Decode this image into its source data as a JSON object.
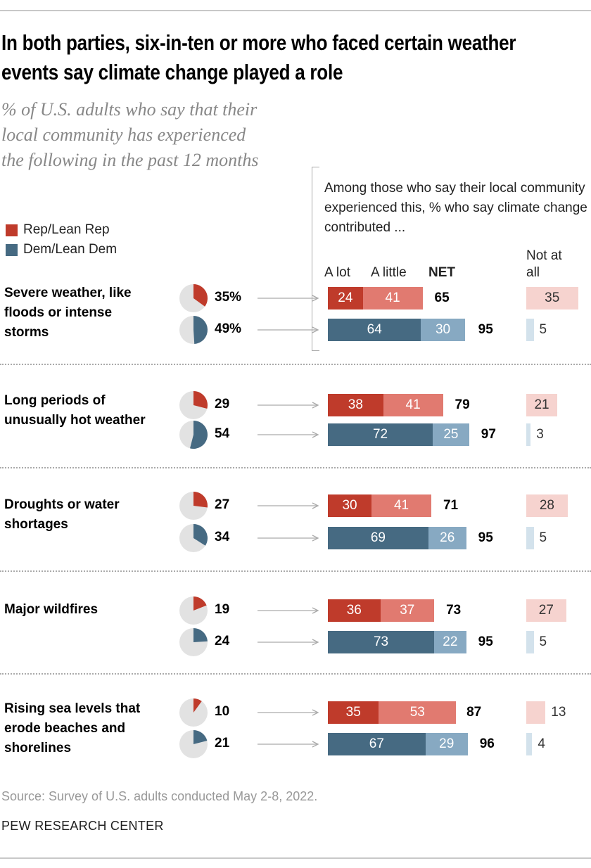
{
  "title": "In both parties, six-in-ten or more who faced certain weather events say climate change played a role",
  "subtitle": "% of U.S. adults who say that their local community has experienced the following in the past 12 months",
  "legend": [
    {
      "name": "Rep/Lean Rep",
      "color": "#BF3B2B"
    },
    {
      "name": "Dem/Lean Dem",
      "color": "#466A82"
    }
  ],
  "bracket_note": "Among those who say their local community experienced this, % who say climate change contributed ...",
  "headers": {
    "a_lot": "A lot",
    "a_little": "A little",
    "net": "NET",
    "not_at_all": "Not at all"
  },
  "colors": {
    "rep_alot": "#BF3B2B",
    "rep_little": "#E17A70",
    "rep_not": "#F6D3CF",
    "dem_alot": "#466A82",
    "dem_little": "#87A9C2",
    "dem_not": "#D3E2EC",
    "pie_bg": "#E2E2E2"
  },
  "chart_data": {
    "type": "bar",
    "stacked": true,
    "categories": [
      "Severe weather, like floods or intense storms",
      "Long periods of unusually hot weather",
      "Droughts or water shortages",
      "Major wildfires",
      "Rising sea levels that erode beaches and shorelines"
    ],
    "rows": [
      {
        "rep": {
          "experienced": "35%",
          "pct": 35,
          "a_lot": 24,
          "a_little": 41,
          "net": 65,
          "not_at_all": 35
        },
        "dem": {
          "experienced": "49%",
          "pct": 49,
          "a_lot": 64,
          "a_little": 30,
          "net": 95,
          "not_at_all": 5
        }
      },
      {
        "rep": {
          "experienced": "29",
          "pct": 29,
          "a_lot": 38,
          "a_little": 41,
          "net": 79,
          "not_at_all": 21
        },
        "dem": {
          "experienced": "54",
          "pct": 54,
          "a_lot": 72,
          "a_little": 25,
          "net": 97,
          "not_at_all": 3
        }
      },
      {
        "rep": {
          "experienced": "27",
          "pct": 27,
          "a_lot": 30,
          "a_little": 41,
          "net": 71,
          "not_at_all": 28
        },
        "dem": {
          "experienced": "34",
          "pct": 34,
          "a_lot": 69,
          "a_little": 26,
          "net": 95,
          "not_at_all": 5
        }
      },
      {
        "rep": {
          "experienced": "19",
          "pct": 19,
          "a_lot": 36,
          "a_little": 37,
          "net": 73,
          "not_at_all": 27
        },
        "dem": {
          "experienced": "24",
          "pct": 24,
          "a_lot": 73,
          "a_little": 22,
          "net": 95,
          "not_at_all": 5
        }
      },
      {
        "rep": {
          "experienced": "10",
          "pct": 10,
          "a_lot": 35,
          "a_little": 53,
          "net": 87,
          "not_at_all": 13
        },
        "dem": {
          "experienced": "21",
          "pct": 21,
          "a_lot": 67,
          "a_little": 29,
          "net": 96,
          "not_at_all": 4
        }
      }
    ]
  },
  "source": "Source: Survey of U.S. adults conducted May 2-8, 2022.",
  "branding": "PEW RESEARCH CENTER"
}
